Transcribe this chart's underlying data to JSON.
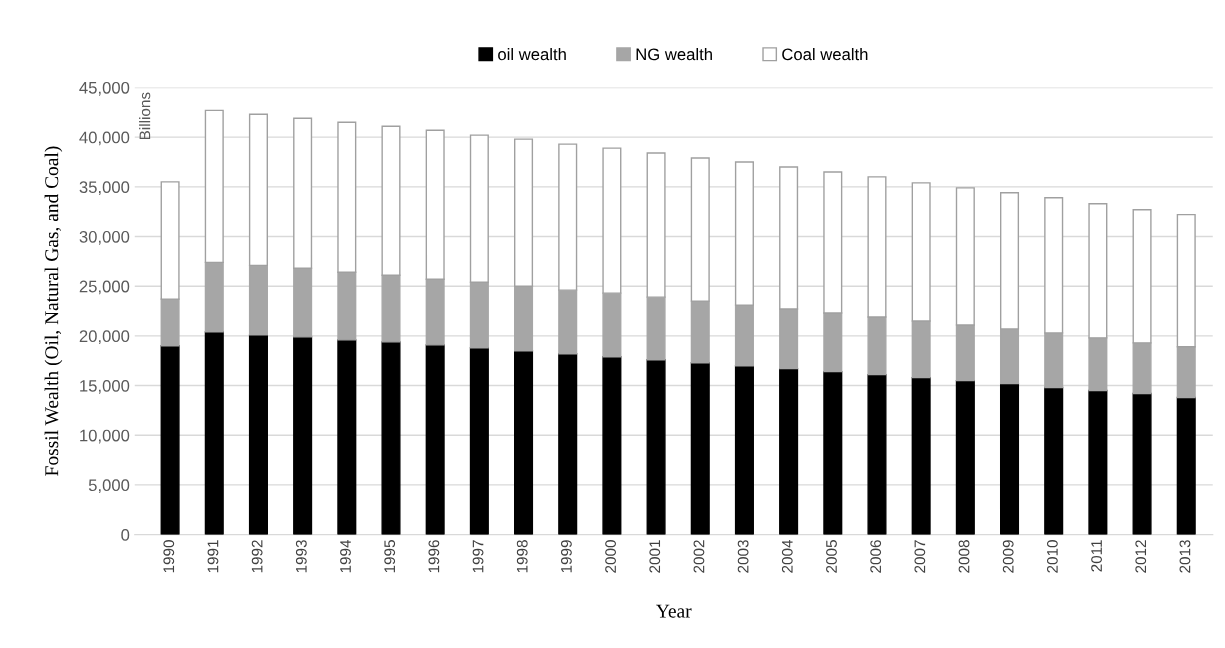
{
  "chart_data": {
    "type": "bar",
    "stacked": true,
    "xlabel": "Year",
    "ylabel": "Fossil Wealth (Oil, Natural Gas, and Coal)",
    "annotations": [
      "Billions"
    ],
    "categories": [
      "1990",
      "1991",
      "1992",
      "1993",
      "1994",
      "1995",
      "1996",
      "1997",
      "1998",
      "1999",
      "2000",
      "2001",
      "2002",
      "2003",
      "2004",
      "2005",
      "2006",
      "2007",
      "2008",
      "2009",
      "2010",
      "2011",
      "2012",
      "2013"
    ],
    "series": [
      {
        "name": "oil wealth",
        "color": "#000000",
        "values": [
          19000,
          20400,
          20100,
          19900,
          19600,
          19400,
          19100,
          18800,
          18500,
          18200,
          17900,
          17600,
          17300,
          17000,
          16700,
          16400,
          16100,
          15800,
          15500,
          15200,
          14800,
          14500,
          14200,
          13800
        ]
      },
      {
        "name": "NG wealth",
        "color": "#a6a6a6",
        "values": [
          4700,
          7000,
          7000,
          6900,
          6800,
          6700,
          6600,
          6600,
          6500,
          6400,
          6400,
          6300,
          6200,
          6100,
          6000,
          5900,
          5800,
          5700,
          5600,
          5500,
          5500,
          5300,
          5100,
          5100
        ]
      },
      {
        "name": "Coal wealth",
        "color": "#ffffff",
        "values": [
          11800,
          15300,
          15200,
          15100,
          15100,
          15000,
          15000,
          14800,
          14800,
          14700,
          14600,
          14500,
          14400,
          14400,
          14300,
          14200,
          14100,
          13900,
          13800,
          13700,
          13600,
          13500,
          13400,
          13300
        ]
      }
    ],
    "ylim": [
      0,
      45000
    ],
    "yticks": [
      {
        "value": 0,
        "label": "0"
      },
      {
        "value": 5000,
        "label": "5,000"
      },
      {
        "value": 10000,
        "label": "10,000"
      },
      {
        "value": 15000,
        "label": "15,000"
      },
      {
        "value": 20000,
        "label": "20,000"
      },
      {
        "value": 25000,
        "label": "25,000"
      },
      {
        "value": 30000,
        "label": "30,000"
      },
      {
        "value": 35000,
        "label": "35,000"
      },
      {
        "value": 40000,
        "label": "40,000"
      },
      {
        "value": 45000,
        "label": "45,000"
      }
    ],
    "grid": "y",
    "legend": "top"
  }
}
